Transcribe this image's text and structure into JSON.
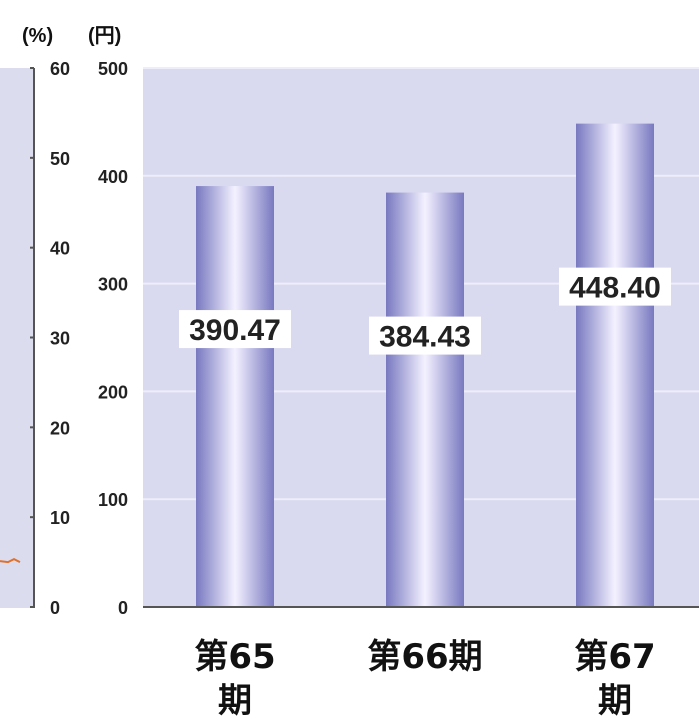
{
  "chart_data": {
    "type": "bar",
    "title": "",
    "left_axis": {
      "unit": "(%)",
      "ylim": [
        0,
        60
      ],
      "ticks": [
        "0",
        "10",
        "20",
        "30",
        "40",
        "50",
        "60"
      ]
    },
    "right_axis": {
      "unit": "(円)",
      "ylim": [
        0,
        500
      ],
      "ticks": [
        "0",
        "100",
        "200",
        "300",
        "400",
        "500"
      ]
    },
    "categories": [
      [
        "第65",
        "期"
      ],
      [
        "第66期"
      ],
      [
        "第67",
        "期"
      ]
    ],
    "values": [
      390.47,
      384.43,
      448.4
    ],
    "data_labels": [
      "390.47",
      "384.43",
      "448.40"
    ],
    "line_series_value_percent": 5,
    "grid": true,
    "colors": {
      "plot_background": "#d9d9ef",
      "bar_edge": "#7878c0",
      "bar_center": "#f4f2ff",
      "gridline": "#eeeefa",
      "line_series": "#e0702a"
    }
  }
}
